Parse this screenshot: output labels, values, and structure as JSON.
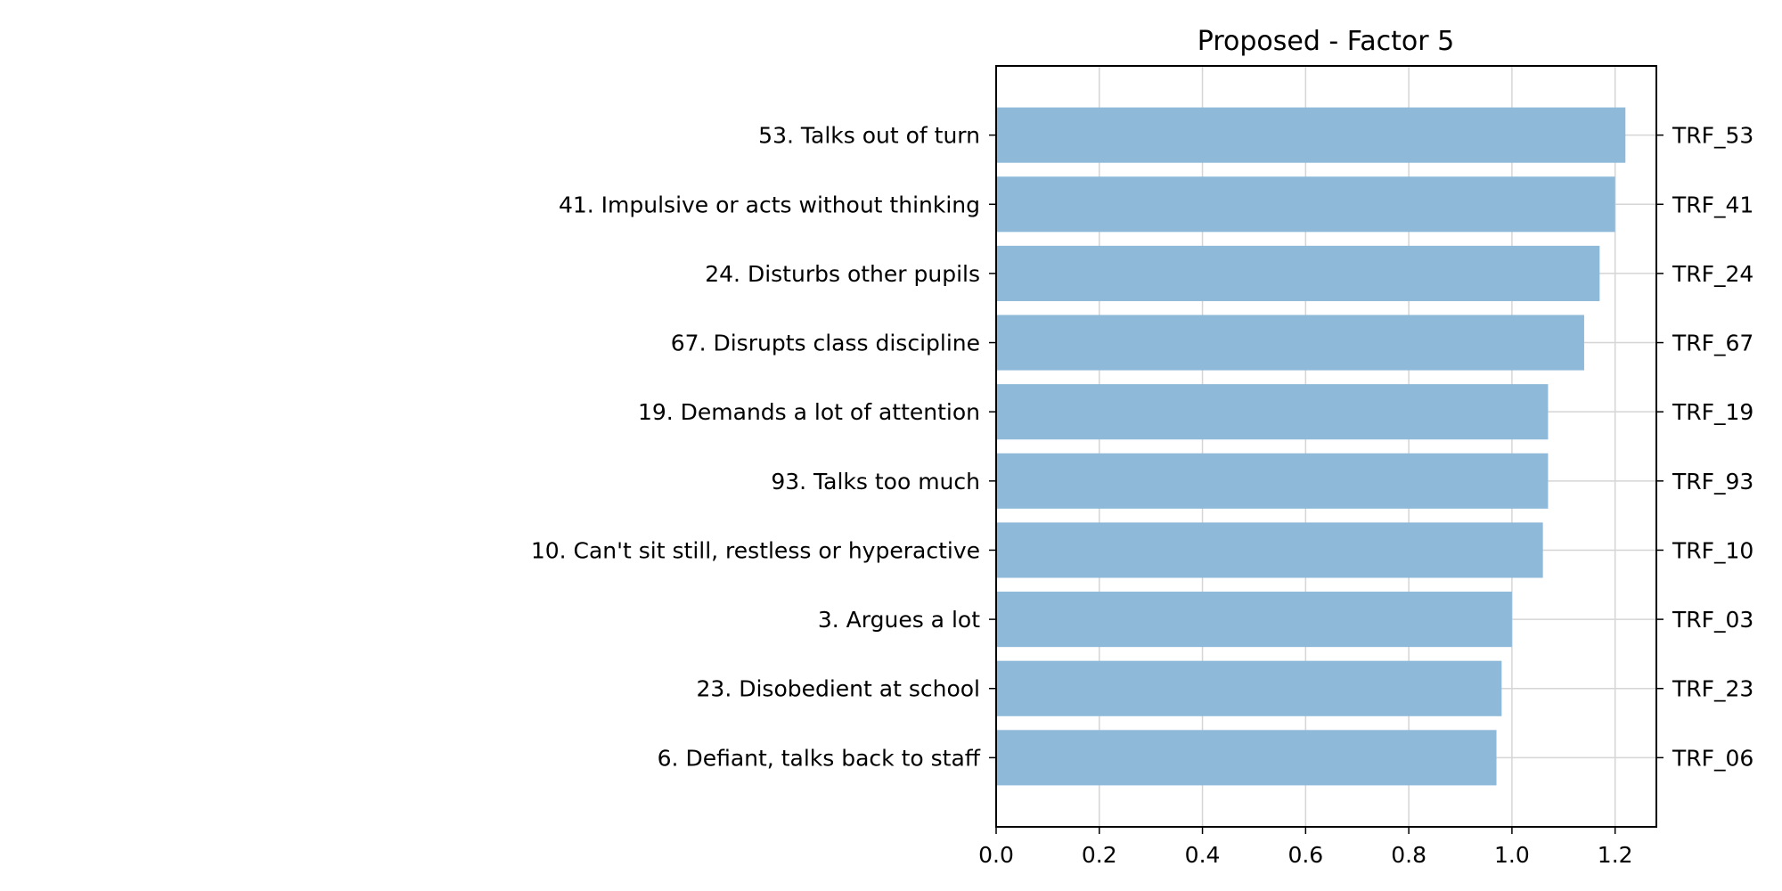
{
  "chart_data": {
    "type": "bar",
    "orientation": "horizontal",
    "title": "Proposed - Factor 5",
    "xlabel": "",
    "ylabel": "",
    "xlim": [
      0,
      1.28
    ],
    "x_ticks": [
      "0.0",
      "0.2",
      "0.4",
      "0.6",
      "0.8",
      "1.0",
      "1.2"
    ],
    "grid": true,
    "bar_color": "#8fb9d9",
    "categories": [
      "53. Talks out of turn",
      "41. Impulsive or acts without thinking",
      "24. Disturbs other pupils",
      "67. Disrupts class discipline",
      "19. Demands a lot of attention",
      "93. Talks too much",
      "10. Can't sit still, restless or hyperactive",
      "3. Argues a lot",
      "23. Disobedient at school",
      "6. Defiant, talks back to staff"
    ],
    "codes": [
      "TRF_53",
      "TRF_41",
      "TRF_24",
      "TRF_67",
      "TRF_19",
      "TRF_93",
      "TRF_10",
      "TRF_03",
      "TRF_23",
      "TRF_06"
    ],
    "values": [
      1.22,
      1.2,
      1.17,
      1.14,
      1.07,
      1.07,
      1.06,
      1.0,
      0.98,
      0.97
    ]
  }
}
